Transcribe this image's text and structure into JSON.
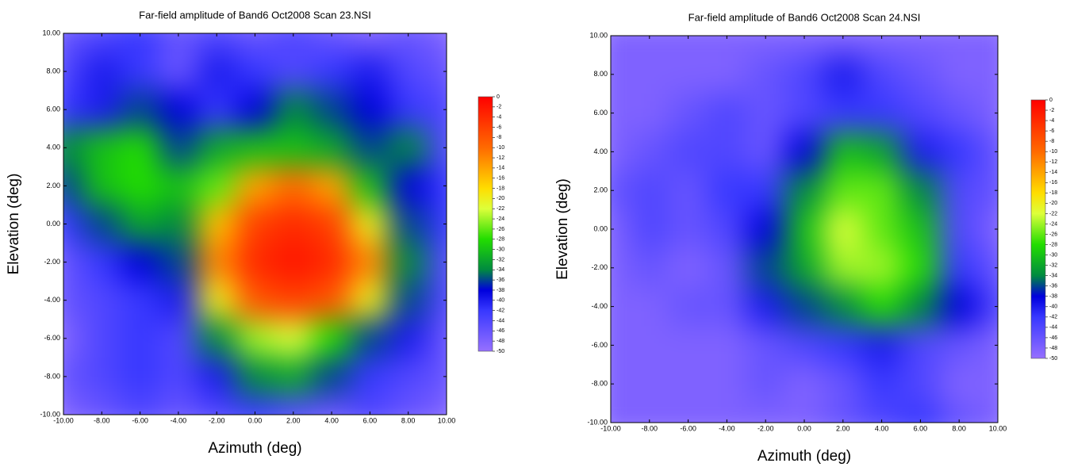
{
  "chart_data": [
    {
      "type": "heatmap",
      "title": "Far-field amplitude of Band6 Oct2008 Scan 23.NSI",
      "xlabel": "Azimuth (deg)",
      "ylabel": "Elevation (deg)",
      "x": [
        -10,
        -8,
        -6,
        -4,
        -2,
        0,
        2,
        4,
        6,
        8,
        10
      ],
      "y": [
        10,
        8,
        6,
        4,
        2,
        0,
        -2,
        -4,
        -6,
        -8,
        -10
      ],
      "z": [
        [
          -46,
          -44,
          -42,
          -46,
          -44,
          -46,
          -44,
          -46,
          -48,
          -46,
          -48
        ],
        [
          -44,
          -40,
          -42,
          -46,
          -40,
          -42,
          -44,
          -42,
          -40,
          -44,
          -46
        ],
        [
          -42,
          -40,
          -36,
          -38,
          -42,
          -38,
          -34,
          -36,
          -38,
          -42,
          -44
        ],
        [
          -34,
          -30,
          -28,
          -36,
          -32,
          -30,
          -30,
          -32,
          -36,
          -34,
          -44
        ],
        [
          -36,
          -30,
          -28,
          -30,
          -26,
          -14,
          -10,
          -14,
          -30,
          -38,
          -42
        ],
        [
          -42,
          -36,
          -32,
          -34,
          -16,
          -6,
          -4,
          -6,
          -20,
          -36,
          -42
        ],
        [
          -46,
          -42,
          -38,
          -36,
          -12,
          -4,
          -2,
          -4,
          -12,
          -34,
          -44
        ],
        [
          -46,
          -44,
          -42,
          -40,
          -20,
          -8,
          -6,
          -8,
          -20,
          -36,
          -44
        ],
        [
          -48,
          -44,
          -42,
          -44,
          -34,
          -24,
          -22,
          -28,
          -36,
          -40,
          -46
        ],
        [
          -46,
          -44,
          -42,
          -44,
          -40,
          -34,
          -32,
          -36,
          -42,
          -44,
          -46
        ],
        [
          -48,
          -46,
          -44,
          -46,
          -44,
          -42,
          -44,
          -46,
          -44,
          -46,
          -48
        ]
      ],
      "xlim": [
        -10,
        10
      ],
      "ylim": [
        -10,
        10
      ],
      "zlim": [
        -50,
        0
      ],
      "xticks": [
        {
          "value": -10,
          "label": "-10.00"
        },
        {
          "value": -8,
          "label": "-8.00"
        },
        {
          "value": -6,
          "label": "-6.00"
        },
        {
          "value": -4,
          "label": "-4.00"
        },
        {
          "value": -2,
          "label": "-2.00"
        },
        {
          "value": 0,
          "label": "0.00"
        },
        {
          "value": 2,
          "label": "2.00"
        },
        {
          "value": 4,
          "label": "4.00"
        },
        {
          "value": 6,
          "label": "6.00"
        },
        {
          "value": 8,
          "label": "8.00"
        },
        {
          "value": 10,
          "label": "10.00"
        }
      ],
      "yticks": [
        {
          "value": -10,
          "label": "-10.00"
        },
        {
          "value": -8,
          "label": "-8.00"
        },
        {
          "value": -6,
          "label": "-6.00"
        },
        {
          "value": -4,
          "label": "-4.00"
        },
        {
          "value": -2,
          "label": "-2.00"
        },
        {
          "value": 0,
          "label": "0.00"
        },
        {
          "value": 2,
          "label": "2.00"
        },
        {
          "value": 4,
          "label": "4.00"
        },
        {
          "value": 6,
          "label": "6.00"
        },
        {
          "value": 8,
          "label": "8.00"
        },
        {
          "value": 10,
          "label": "10.00"
        }
      ],
      "colorbar_ticks": [
        0,
        -2,
        -4,
        -6,
        -8,
        -10,
        -12,
        -14,
        -16,
        -18,
        -20,
        -22,
        -24,
        -26,
        -28,
        -30,
        -32,
        -34,
        -36,
        -38,
        -40,
        -42,
        -44,
        -46,
        -48,
        -50
      ],
      "colorscale": [
        {
          "value": 0,
          "color": "#ff0000"
        },
        {
          "value": -10,
          "color": "#ff6a00"
        },
        {
          "value": -18,
          "color": "#ffdd00"
        },
        {
          "value": -22,
          "color": "#ddff3a"
        },
        {
          "value": -28,
          "color": "#22dd00"
        },
        {
          "value": -34,
          "color": "#008a40"
        },
        {
          "value": -38,
          "color": "#0000dd"
        },
        {
          "value": -42,
          "color": "#3838ff"
        },
        {
          "value": -50,
          "color": "#9670ff"
        }
      ]
    },
    {
      "type": "heatmap",
      "title": "Far-field amplitude of Band6 Oct2008 Scan 24.NSI",
      "xlabel": "Azimuth (deg)",
      "ylabel": "Elevation (deg)",
      "x": [
        -10,
        -8,
        -6,
        -4,
        -2,
        0,
        2,
        4,
        6,
        8,
        10
      ],
      "y": [
        10,
        8,
        6,
        4,
        2,
        0,
        -2,
        -4,
        -6,
        -8,
        -10
      ],
      "z": [
        [
          -48,
          -48,
          -48,
          -48,
          -48,
          -48,
          -48,
          -48,
          -48,
          -48,
          -48
        ],
        [
          -48,
          -48,
          -48,
          -48,
          -46,
          -44,
          -40,
          -44,
          -46,
          -48,
          -48
        ],
        [
          -48,
          -48,
          -46,
          -44,
          -46,
          -44,
          -42,
          -42,
          -44,
          -46,
          -48
        ],
        [
          -48,
          -46,
          -44,
          -44,
          -46,
          -38,
          -30,
          -32,
          -40,
          -42,
          -46
        ],
        [
          -46,
          -44,
          -46,
          -42,
          -42,
          -34,
          -26,
          -26,
          -34,
          -44,
          -46
        ],
        [
          -48,
          -44,
          -46,
          -44,
          -38,
          -30,
          -22,
          -26,
          -30,
          -44,
          -48
        ],
        [
          -48,
          -46,
          -48,
          -46,
          -36,
          -32,
          -24,
          -24,
          -28,
          -42,
          -46
        ],
        [
          -48,
          -48,
          -46,
          -46,
          -40,
          -36,
          -34,
          -28,
          -34,
          -38,
          -44
        ],
        [
          -48,
          -48,
          -48,
          -48,
          -46,
          -44,
          -42,
          -40,
          -44,
          -46,
          -48
        ],
        [
          -48,
          -48,
          -48,
          -48,
          -46,
          -48,
          -46,
          -42,
          -44,
          -48,
          -48
        ],
        [
          -48,
          -48,
          -48,
          -48,
          -48,
          -48,
          -46,
          -44,
          -42,
          -46,
          -48
        ]
      ],
      "xlim": [
        -10,
        10
      ],
      "ylim": [
        -10,
        10
      ],
      "zlim": [
        -50,
        0
      ],
      "xticks": [
        {
          "value": -10,
          "label": "-10.00"
        },
        {
          "value": -8,
          "label": "-8.00"
        },
        {
          "value": -6,
          "label": "-6.00"
        },
        {
          "value": -4,
          "label": "-4.00"
        },
        {
          "value": -2,
          "label": "-2.00"
        },
        {
          "value": 0,
          "label": "0.00"
        },
        {
          "value": 2,
          "label": "2.00"
        },
        {
          "value": 4,
          "label": "4.00"
        },
        {
          "value": 6,
          "label": "6.00"
        },
        {
          "value": 8,
          "label": "8.00"
        },
        {
          "value": 10,
          "label": "10.00"
        }
      ],
      "yticks": [
        {
          "value": -10,
          "label": "-10.00"
        },
        {
          "value": -8,
          "label": "-8.00"
        },
        {
          "value": -6,
          "label": "-6.00"
        },
        {
          "value": -4,
          "label": "-4.00"
        },
        {
          "value": -2,
          "label": "-2.00"
        },
        {
          "value": 0,
          "label": "0.00"
        },
        {
          "value": 2,
          "label": "2.00"
        },
        {
          "value": 4,
          "label": "4.00"
        },
        {
          "value": 6,
          "label": "6.00"
        },
        {
          "value": 8,
          "label": "8.00"
        },
        {
          "value": 10,
          "label": "10.00"
        }
      ],
      "colorbar_ticks": [
        0,
        -2,
        -4,
        -6,
        -8,
        -10,
        -12,
        -14,
        -16,
        -18,
        -20,
        -22,
        -24,
        -26,
        -28,
        -30,
        -32,
        -34,
        -36,
        -38,
        -40,
        -42,
        -44,
        -46,
        -48,
        -50
      ],
      "colorscale": [
        {
          "value": 0,
          "color": "#ff0000"
        },
        {
          "value": -10,
          "color": "#ff6a00"
        },
        {
          "value": -18,
          "color": "#ffdd00"
        },
        {
          "value": -22,
          "color": "#ddff3a"
        },
        {
          "value": -28,
          "color": "#22dd00"
        },
        {
          "value": -34,
          "color": "#008a40"
        },
        {
          "value": -38,
          "color": "#0000dd"
        },
        {
          "value": -42,
          "color": "#3838ff"
        },
        {
          "value": -50,
          "color": "#9670ff"
        }
      ]
    }
  ]
}
